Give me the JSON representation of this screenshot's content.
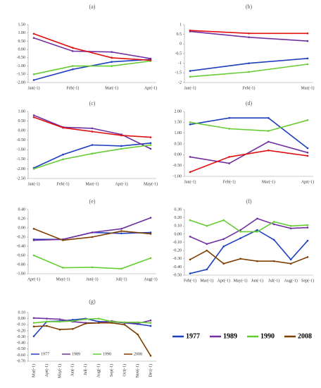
{
  "chart_data": [
    {
      "type": "line",
      "title": "(a)",
      "categories": [
        "Jan(-1)",
        "Feb(-1)",
        "Mar(-1)",
        "Apr(-1)"
      ],
      "ylim": [
        -2,
        1.5
      ],
      "yticks": [
        {
          "value": 1.5,
          "label": "1.50"
        },
        {
          "value": 1,
          "label": "1.00"
        },
        {
          "value": 0.5,
          "label": "0.50"
        },
        {
          "value": 0,
          "label": "0.00"
        },
        {
          "value": -0.5,
          "label": "-0.50"
        },
        {
          "value": -1,
          "label": "-1.00"
        },
        {
          "value": -1.5,
          "label": "-1.50"
        },
        {
          "value": -2,
          "label": "-2.00"
        }
      ],
      "series": [
        {
          "color": "#1f3fbf",
          "values": [
            -1.85,
            -1.2,
            -0.75,
            -0.6
          ]
        },
        {
          "color": "#7030a0",
          "values": [
            0.7,
            -0.1,
            -0.15,
            -0.55
          ]
        },
        {
          "color": "#66cc33",
          "values": [
            -1.5,
            -1.0,
            -1.0,
            -0.7
          ]
        },
        {
          "color": "#e01010",
          "values": [
            0.95,
            0.1,
            -0.5,
            -0.65
          ]
        }
      ]
    },
    {
      "type": "line",
      "title": "(b)",
      "categories": [
        "Jan(-1)",
        "Feb(-1)",
        "Mar(-1)"
      ],
      "ylim": [
        -2,
        1
      ],
      "yticks": [
        1,
        0.5,
        0,
        -0.5,
        -1,
        -1.5,
        -2
      ],
      "series": [
        {
          "color": "#1f3fbf",
          "values": [
            -1.4,
            -1.0,
            -0.75
          ]
        },
        {
          "color": "#7030a0",
          "values": [
            0.65,
            0.35,
            0.15
          ]
        },
        {
          "color": "#66cc33",
          "values": [
            -1.7,
            -1.45,
            -1.05
          ]
        },
        {
          "color": "#e01010",
          "values": [
            0.7,
            0.55,
            0.55
          ]
        }
      ]
    },
    {
      "type": "line",
      "title": "(c)",
      "categories": [
        "Jan(-1)",
        "Feb(-1)",
        "Mar(-1)",
        "Apr(-1)",
        "May(-1)"
      ],
      "ylim": [
        -2.5,
        1
      ],
      "yticks": [
        {
          "value": 1,
          "label": "1.00"
        },
        {
          "value": 0.5,
          "label": "0.50"
        },
        {
          "value": 0,
          "label": "0.00"
        },
        {
          "value": -0.5,
          "label": "-0.50"
        },
        {
          "value": -1,
          "label": "-1.00"
        },
        {
          "value": -1.5,
          "label": "-1.50"
        },
        {
          "value": -2,
          "label": "-2.00"
        },
        {
          "value": -2.5,
          "label": "-2.50"
        }
      ],
      "series": [
        {
          "color": "#1f3fbf",
          "values": [
            -1.95,
            -1.25,
            -0.75,
            -0.8,
            -0.65
          ]
        },
        {
          "color": "#7030a0",
          "values": [
            0.8,
            0.18,
            0.12,
            -0.2,
            -0.95
          ]
        },
        {
          "color": "#66cc33",
          "values": [
            -2.0,
            -1.5,
            -1.2,
            -0.95,
            -0.75
          ]
        },
        {
          "color": "#e01010",
          "values": [
            0.7,
            0.15,
            -0.05,
            -0.25,
            -0.35
          ]
        }
      ]
    },
    {
      "type": "line",
      "title": "(d)",
      "categories": [
        "Jan(-1)",
        "Feb(-1)",
        "Mar(-1)",
        "Apr(-1)"
      ],
      "ylim": [
        -1,
        2
      ],
      "yticks": [
        {
          "value": 2,
          "label": "2.00"
        },
        {
          "value": 1.5,
          "label": "1.50"
        },
        {
          "value": 1,
          "label": "1.00"
        },
        {
          "value": 0.5,
          "label": "0.50"
        },
        {
          "value": 0,
          "label": "0.00"
        },
        {
          "value": -0.5,
          "label": "-0.50"
        },
        {
          "value": -1,
          "label": "-1.00"
        }
      ],
      "series": [
        {
          "color": "#1f3fbf",
          "values": [
            1.4,
            1.7,
            1.7,
            0.3
          ]
        },
        {
          "color": "#7030a0",
          "values": [
            -0.1,
            -0.4,
            0.6,
            0.1
          ]
        },
        {
          "color": "#66cc33",
          "values": [
            1.5,
            1.2,
            1.1,
            1.6
          ]
        },
        {
          "color": "#e01010",
          "values": [
            -0.8,
            -0.1,
            0.2,
            -0.05
          ]
        }
      ]
    },
    {
      "type": "line",
      "title": "(e)",
      "categories": [
        "Apr(-1)",
        "May(-1)",
        "Jun(-1)",
        "Jul(-1)",
        "Aug(-1)"
      ],
      "ylim": [
        -1,
        0.4
      ],
      "yticks": [
        {
          "value": 0.4,
          "label": "0.40"
        },
        {
          "value": 0.2,
          "label": "0.20"
        },
        {
          "value": 0,
          "label": "0.00"
        },
        {
          "value": -0.2,
          "label": "-0.20"
        },
        {
          "value": -0.4,
          "label": "-0.40"
        },
        {
          "value": -0.6,
          "label": "-0.60"
        },
        {
          "value": -0.8,
          "label": "-0.80"
        },
        {
          "value": -1,
          "label": "-1.00"
        }
      ],
      "series": [
        {
          "color": "#1f3fbf",
          "values": [
            -0.25,
            -0.25,
            -0.1,
            -0.12,
            -0.1
          ]
        },
        {
          "color": "#7030a0",
          "values": [
            -0.27,
            -0.25,
            -0.1,
            -0.02,
            0.22
          ]
        },
        {
          "color": "#66cc33",
          "values": [
            -0.6,
            -0.87,
            -0.86,
            -0.89,
            -0.66
          ]
        },
        {
          "color": "#7f3f00",
          "values": [
            -0.02,
            -0.27,
            -0.2,
            -0.07,
            -0.13
          ]
        }
      ]
    },
    {
      "type": "line",
      "title": "(f)",
      "categories": [
        "Feb(-1)",
        "Mar(-1)",
        "Apr(-1)",
        "May(-1)",
        "Jun(-1)",
        "Jul(-1)",
        "Aug(-1)",
        "Sep(-1)"
      ],
      "ylim": [
        -0.5,
        0.3
      ],
      "yticks": [
        {
          "value": 0.3,
          "label": "0.30"
        },
        {
          "value": 0.2,
          "label": "0.20"
        },
        {
          "value": 0.1,
          "label": "0.10"
        },
        {
          "value": 0,
          "label": "0.00"
        },
        {
          "value": -0.1,
          "label": "-0.10"
        },
        {
          "value": -0.2,
          "label": "-0.20"
        },
        {
          "value": -0.3,
          "label": "-0.30"
        },
        {
          "value": -0.4,
          "label": "-0.40"
        },
        {
          "value": -0.5,
          "label": "-0.50"
        }
      ],
      "series": [
        {
          "color": "#1f3fbf",
          "values": [
            -0.48,
            -0.43,
            -0.15,
            -0.05,
            0.05,
            -0.07,
            -0.31,
            -0.08
          ]
        },
        {
          "color": "#7030a0",
          "values": [
            -0.03,
            -0.12,
            -0.06,
            0.05,
            0.19,
            0.12,
            0.07,
            0.08
          ]
        },
        {
          "color": "#66cc33",
          "values": [
            0.17,
            0.1,
            0.17,
            0.03,
            0.03,
            0.15,
            0.1,
            0.11
          ]
        },
        {
          "color": "#7f3f00",
          "values": [
            -0.31,
            -0.2,
            -0.36,
            -0.3,
            -0.33,
            -0.33,
            -0.36,
            -0.28
          ]
        }
      ]
    },
    {
      "type": "line",
      "title": "(g)",
      "categories": [
        "Mar(-1)",
        "Apr(-1)",
        "May(-1)",
        "Jun(-1)",
        "Jul(-1)",
        "Aug(-1)",
        "Sep(-1)",
        "Oct(-1)",
        "Nov(-1)",
        "Dec(-1)"
      ],
      "ylim": [
        -0.7,
        0.1
      ],
      "yticks": [
        {
          "value": 0.1,
          "label": "0.10"
        },
        {
          "value": 0,
          "label": "0.00"
        },
        {
          "value": -0.1,
          "label": "-0.10"
        },
        {
          "value": -0.2,
          "label": "-0.20"
        },
        {
          "value": -0.3,
          "label": "-0.30"
        },
        {
          "value": -0.4,
          "label": "-0.40"
        },
        {
          "value": -0.5,
          "label": "-0.50"
        },
        {
          "value": -0.6,
          "label": "-0.60"
        },
        {
          "value": -0.7,
          "label": "-0.70"
        }
      ],
      "series": [
        {
          "name": "1977",
          "color": "#1f3fbf",
          "values": [
            -0.29,
            -0.05,
            -0.04,
            -0.02,
            0,
            -0.05,
            -0.05,
            -0.07,
            -0.09,
            -0.12
          ]
        },
        {
          "name": "1989",
          "color": "#7030a0",
          "values": [
            0.01,
            0,
            -0.01,
            -0.05,
            -0.07,
            -0.07,
            -0.04,
            -0.07,
            -0.08,
            -0.03
          ]
        },
        {
          "name": "1990",
          "color": "#66cc33",
          "values": [
            -0.07,
            -0.05,
            -0.05,
            -0.04,
            -0.01,
            0,
            -0.05,
            -0.06,
            -0.06,
            -0.07
          ]
        },
        {
          "name": "2008",
          "color": "#7f3f00",
          "values": [
            -0.13,
            -0.12,
            -0.18,
            -0.17,
            -0.08,
            -0.07,
            -0.07,
            -0.1,
            -0.26,
            -0.61
          ]
        }
      ]
    }
  ]
}
